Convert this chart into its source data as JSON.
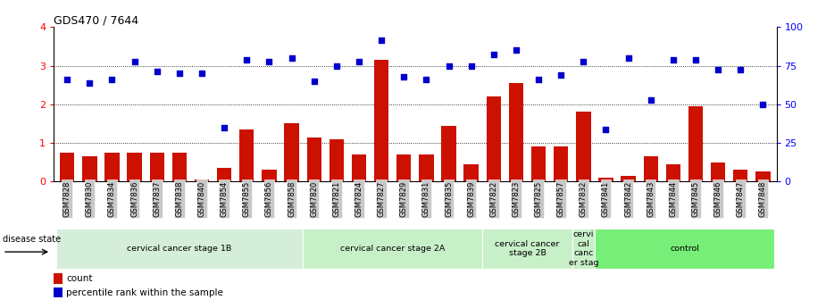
{
  "title": "GDS470 / 7644",
  "samples": [
    "GSM7828",
    "GSM7830",
    "GSM7834",
    "GSM7836",
    "GSM7837",
    "GSM7838",
    "GSM7840",
    "GSM7854",
    "GSM7855",
    "GSM7856",
    "GSM7858",
    "GSM7820",
    "GSM7821",
    "GSM7824",
    "GSM7827",
    "GSM7829",
    "GSM7831",
    "GSM7835",
    "GSM7839",
    "GSM7822",
    "GSM7823",
    "GSM7825",
    "GSM7857",
    "GSM7832",
    "GSM7841",
    "GSM7842",
    "GSM7843",
    "GSM7844",
    "GSM7845",
    "GSM7846",
    "GSM7847",
    "GSM7848"
  ],
  "bar_values": [
    0.75,
    0.65,
    0.75,
    0.75,
    0.75,
    0.75,
    0.05,
    0.35,
    1.35,
    0.3,
    1.5,
    1.15,
    1.1,
    0.7,
    3.15,
    0.7,
    0.7,
    1.45,
    0.45,
    2.2,
    2.55,
    0.9,
    0.9,
    1.8,
    0.1,
    0.15,
    0.65,
    0.45,
    1.95,
    0.5,
    0.3,
    0.25
  ],
  "dot_values": [
    2.65,
    2.55,
    2.65,
    3.1,
    2.85,
    2.8,
    2.8,
    1.4,
    3.15,
    3.1,
    3.2,
    2.6,
    3.0,
    3.1,
    3.65,
    2.7,
    2.65,
    3.0,
    3.0,
    3.3,
    3.4,
    2.65,
    2.75,
    3.1,
    1.35,
    3.2,
    2.1,
    3.15,
    3.15,
    2.9,
    2.9,
    2.0
  ],
  "groups": [
    {
      "label": "cervical cancer stage 1B",
      "start": 0,
      "end": 10,
      "color": "#d4eeda"
    },
    {
      "label": "cervical cancer stage 2A",
      "start": 11,
      "end": 18,
      "color": "#c8f0c8"
    },
    {
      "label": "cervical cancer\nstage 2B",
      "start": 19,
      "end": 22,
      "color": "#c8f0c8"
    },
    {
      "label": "cervi\ncal\ncanc\ner stag",
      "start": 23,
      "end": 23,
      "color": "#c8f0c8"
    },
    {
      "label": "control",
      "start": 24,
      "end": 31,
      "color": "#77ee77"
    }
  ],
  "bar_color": "#cc1100",
  "dot_color": "#0000cc",
  "ylim_left": [
    0,
    4
  ],
  "ylim_right": [
    0,
    100
  ],
  "disease_state_label": "disease state",
  "legend_count": "count",
  "legend_pct": "percentile rank within the sample",
  "dotted_lines": [
    1.0,
    2.0,
    3.0
  ],
  "background_color": "#ffffff",
  "tick_bg": "#c8c8c8"
}
